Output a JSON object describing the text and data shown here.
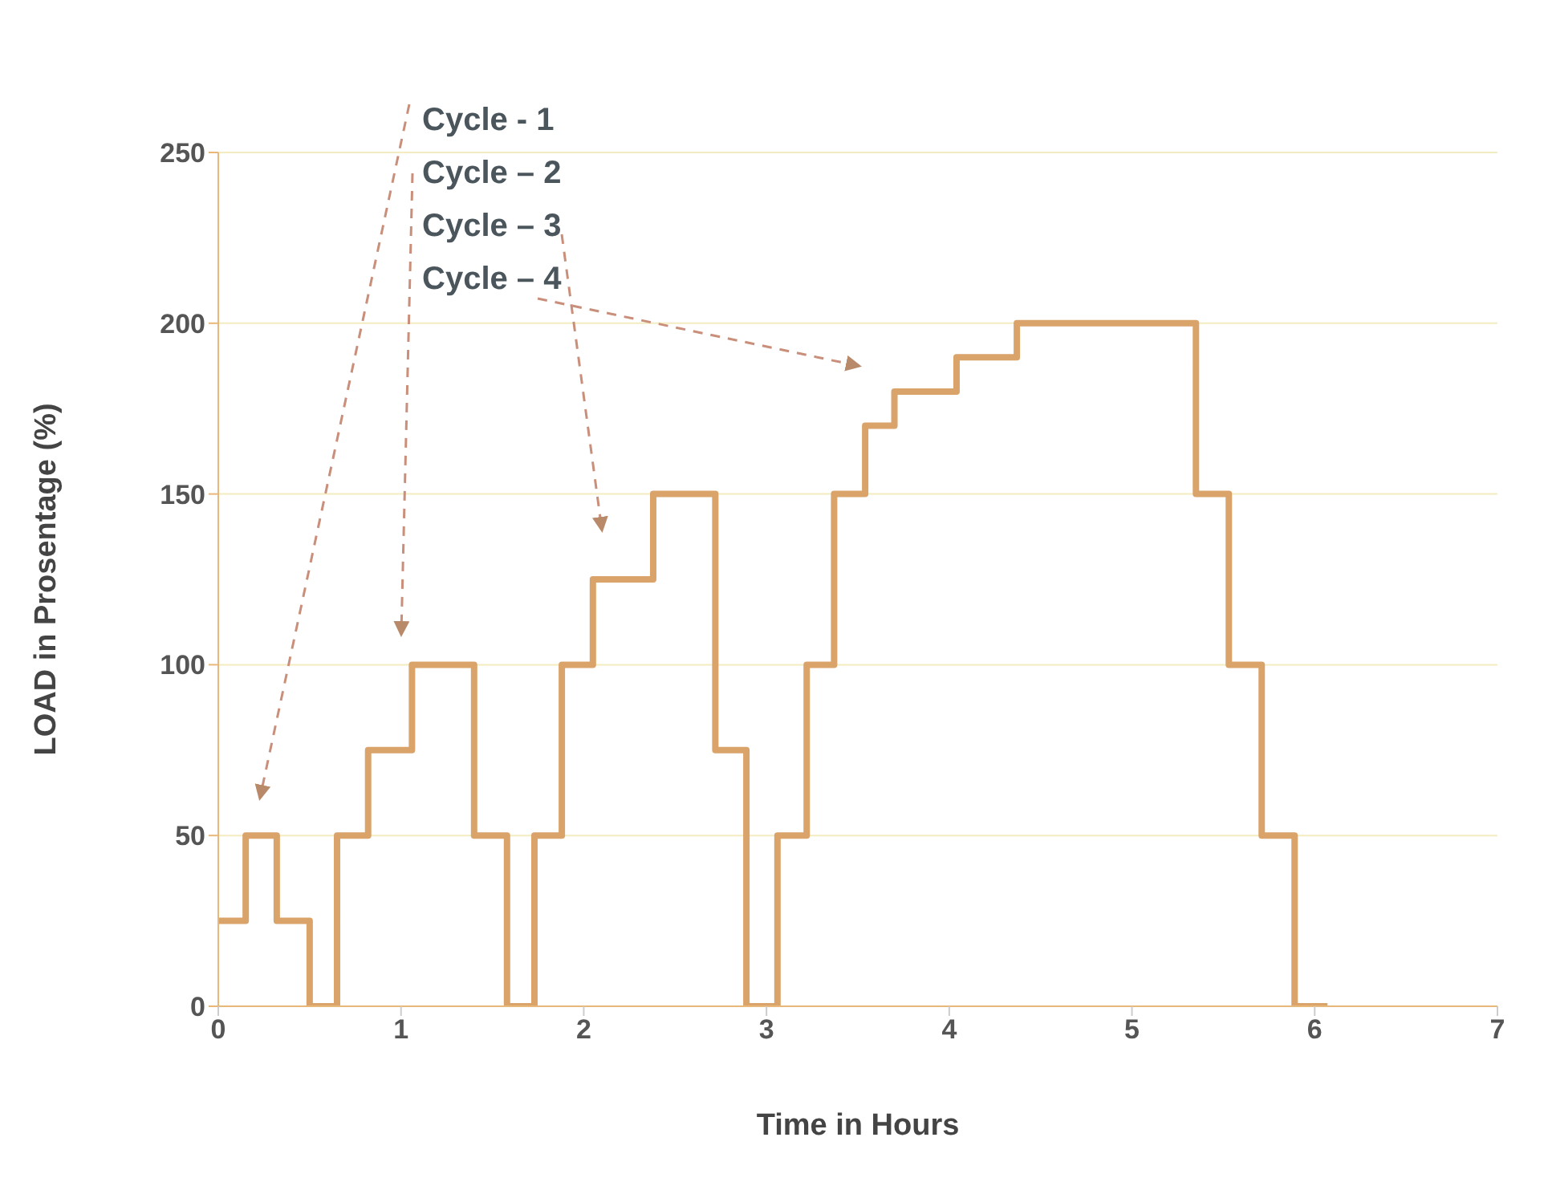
{
  "chart_data": {
    "type": "step",
    "xlabel": "Time in Hours",
    "ylabel": "LOAD in Prosentage (%)",
    "x": [
      0,
      0.15,
      0.32,
      0.5,
      0.65,
      0.82,
      1.06,
      1.4,
      1.58,
      1.73,
      1.88,
      2.05,
      2.38,
      2.72,
      2.89,
      3.06,
      3.22,
      3.37,
      3.54,
      3.7,
      4.04,
      4.37,
      5.35,
      5.53,
      5.71,
      5.89,
      6.07
    ],
    "series": [
      {
        "color": "#d9a36a",
        "values": [
          25,
          50,
          25,
          0,
          50,
          75,
          100,
          50,
          0,
          50,
          100,
          125,
          150,
          75,
          0,
          50,
          100,
          150,
          170,
          180,
          190,
          200,
          150,
          100,
          50,
          0,
          0
        ]
      }
    ],
    "xlim": [
      0,
      7
    ],
    "xticks": [
      0,
      1,
      2,
      3,
      4,
      5,
      6,
      7
    ],
    "ylim": [
      0,
      250
    ],
    "yticks": [
      0,
      50,
      100,
      150,
      200,
      250
    ],
    "grid": "y",
    "legend": false,
    "marker": "none",
    "line_style": "solid",
    "annotations": [
      "Cycle - 1",
      "Cycle – 2",
      "Cycle – 3",
      "Cycle – 4"
    ]
  }
}
